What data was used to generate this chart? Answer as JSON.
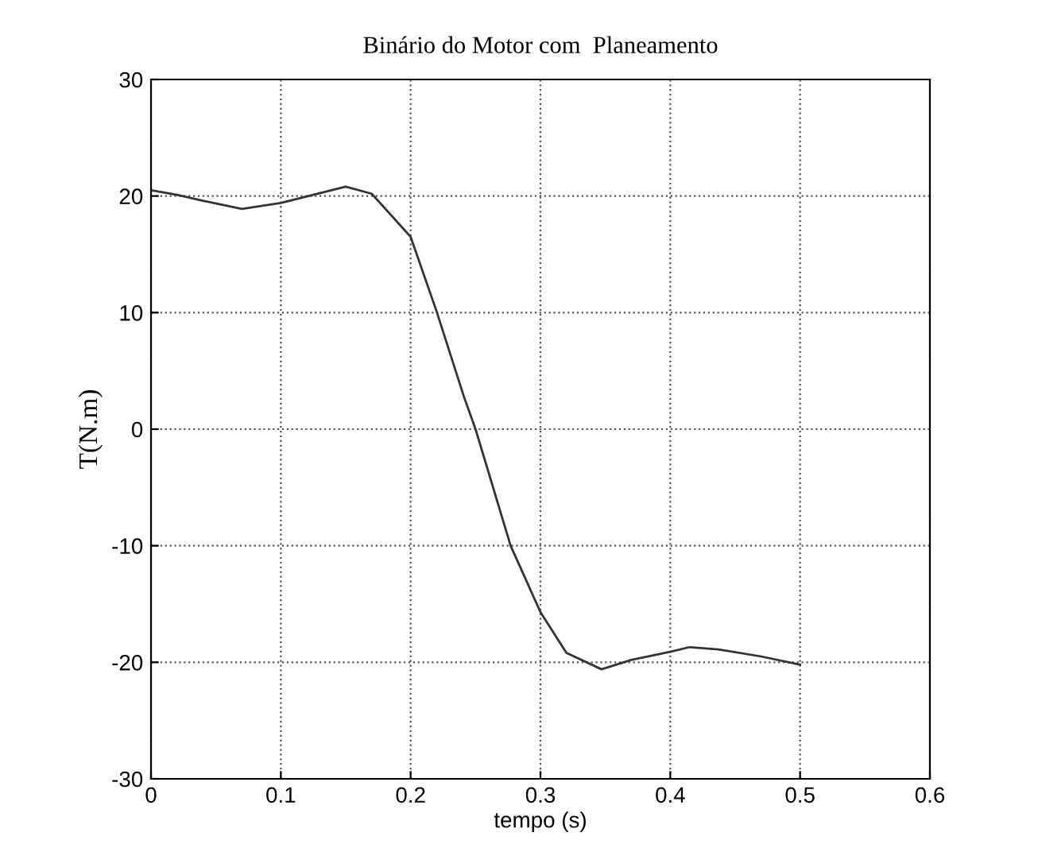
{
  "chart_data": {
    "type": "line",
    "title": "Binário do Motor com  Planeamento",
    "xlabel": "tempo (s)",
    "ylabel": "T(N.m)",
    "x": [
      0,
      0.02,
      0.04,
      0.07,
      0.1,
      0.125,
      0.15,
      0.17,
      0.2,
      0.22,
      0.241,
      0.25,
      0.277,
      0.3,
      0.32,
      0.347,
      0.37,
      0.4,
      0.415,
      0.437,
      0.47,
      0.5
    ],
    "series": [
      {
        "color": "#333333",
        "values": [
          20.5,
          20.1,
          19.6,
          18.9,
          19.4,
          20.1,
          20.8,
          20.2,
          16.5,
          10.1,
          2.8,
          0,
          -10,
          -15.7,
          -19.2,
          -20.6,
          -19.8,
          -19.1,
          -18.7,
          -18.9,
          -19.5,
          -20.2
        ]
      }
    ],
    "xlim": [
      0,
      0.6
    ],
    "xticks": [
      0,
      0.1,
      0.2,
      0.3,
      0.4,
      0.5,
      0.6
    ],
    "ylim": [
      -30,
      30
    ],
    "yticks": [
      -30,
      -20,
      -10,
      0,
      10,
      20,
      30
    ],
    "grid": true,
    "line_style": "solid",
    "marker": "none"
  }
}
